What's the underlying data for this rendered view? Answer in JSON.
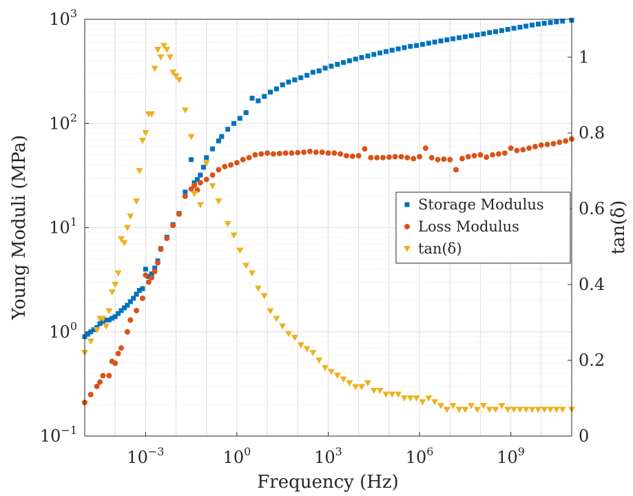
{
  "chart_data": {
    "type": "scatter",
    "title": "",
    "xlabel": "Frequency (Hz)",
    "ylabel": "Young Moduli (MPa)",
    "y2label": "tan(δ)",
    "x_scale": "log",
    "y_scale": "log",
    "xlim": [
      1e-05,
      100000000000
    ],
    "ylim": [
      0.1,
      1000
    ],
    "y2lim": [
      0,
      1.1
    ],
    "grid": true,
    "legend_position": "center-right",
    "x_ticks": [
      {
        "value": 0.001,
        "base": "10",
        "exp": "−3"
      },
      {
        "value": 1,
        "base": "10",
        "exp": "0"
      },
      {
        "value": 1000,
        "base": "10",
        "exp": "3"
      },
      {
        "value": 1000000,
        "base": "10",
        "exp": "6"
      },
      {
        "value": 1000000000,
        "base": "10",
        "exp": "9"
      }
    ],
    "y_ticks": [
      {
        "value": 0.1,
        "base": "10",
        "exp": "−1"
      },
      {
        "value": 1,
        "base": "10",
        "exp": "0"
      },
      {
        "value": 10,
        "base": "10",
        "exp": "1"
      },
      {
        "value": 100,
        "base": "10",
        "exp": "2"
      },
      {
        "value": 1000,
        "base": "10",
        "exp": "3"
      }
    ],
    "y2_ticks": [
      {
        "value": 0,
        "label": "0"
      },
      {
        "value": 0.2,
        "label": "0.2"
      },
      {
        "value": 0.4,
        "label": "0.4"
      },
      {
        "value": 0.6,
        "label": "0.6"
      },
      {
        "value": 0.8,
        "label": "0.8"
      },
      {
        "value": 1,
        "label": "1"
      }
    ],
    "series": [
      {
        "name": "Storage Modulus",
        "marker": "square",
        "color": "#0072BD",
        "axis": "left",
        "points": [
          [
            1e-05,
            0.9
          ],
          [
            1.26e-05,
            0.95
          ],
          [
            1.58e-05,
            1.0
          ],
          [
            2e-05,
            1.05
          ],
          [
            2.5e-05,
            1.1
          ],
          [
            3.16e-05,
            1.2
          ],
          [
            3.98e-05,
            1.25
          ],
          [
            5e-05,
            1.3
          ],
          [
            6.31e-05,
            1.3
          ],
          [
            7.94e-05,
            1.35
          ],
          [
            0.0001,
            1.4
          ],
          [
            0.000126,
            1.5
          ],
          [
            0.000158,
            1.6
          ],
          [
            0.0002,
            1.7
          ],
          [
            0.000251,
            1.8
          ],
          [
            0.000316,
            1.95
          ],
          [
            0.000398,
            2.1
          ],
          [
            0.0005,
            2.3
          ],
          [
            0.000631,
            2.5
          ],
          [
            0.000794,
            2.6
          ],
          [
            0.001,
            4.0
          ],
          [
            0.00126,
            3.4
          ],
          [
            0.00158,
            3.6
          ],
          [
            0.002,
            4.1
          ],
          [
            0.00251,
            4.8
          ],
          [
            0.00316,
            6.3
          ],
          [
            0.00501,
            8.1
          ],
          [
            0.00794,
            10.7
          ],
          [
            0.0126,
            13.7
          ],
          [
            0.02,
            22.0
          ],
          [
            0.0316,
            45.0
          ],
          [
            0.0398,
            27.0
          ],
          [
            0.0501,
            29.0
          ],
          [
            0.0631,
            32.0
          ],
          [
            0.0794,
            38.0
          ],
          [
            0.1,
            47.0
          ],
          [
            0.158,
            57.0
          ],
          [
            0.251,
            68.0
          ],
          [
            0.316,
            75.0
          ],
          [
            0.501,
            88.0
          ],
          [
            0.794,
            100.0
          ],
          [
            1.26,
            112.0
          ],
          [
            2.0,
            127.0
          ],
          [
            3.16,
            175.0
          ],
          [
            5.0,
            165.0
          ],
          [
            7.94,
            182.0
          ],
          [
            12.6,
            200.0
          ],
          [
            20,
            215.0
          ],
          [
            31.6,
            235.0
          ],
          [
            50,
            250.0
          ],
          [
            79.4,
            262.0
          ],
          [
            126,
            275.0
          ],
          [
            200,
            290.0
          ],
          [
            316,
            310.0
          ],
          [
            501,
            320.0
          ],
          [
            794,
            340.0
          ],
          [
            1260,
            355.0
          ],
          [
            2000,
            370.0
          ],
          [
            3160,
            385.0
          ],
          [
            5010,
            400.0
          ],
          [
            7940,
            415.0
          ],
          [
            12600,
            430.0
          ],
          [
            20000,
            445.0
          ],
          [
            31600,
            460.0
          ],
          [
            50100,
            475.0
          ],
          [
            79400,
            490.0
          ],
          [
            126000,
            505.0
          ],
          [
            200000,
            520.0
          ],
          [
            316000,
            535.0
          ],
          [
            501000,
            550.0
          ],
          [
            794000,
            560.0
          ],
          [
            1260000,
            575.0
          ],
          [
            2000000,
            590.0
          ],
          [
            3160000,
            605.0
          ],
          [
            5010000,
            620.0
          ],
          [
            7940000,
            635.0
          ],
          [
            12600000,
            650.0
          ],
          [
            20000000,
            665.0
          ],
          [
            31600000,
            680.0
          ],
          [
            50100000,
            695.0
          ],
          [
            79400000,
            710.0
          ],
          [
            126000000,
            725.0
          ],
          [
            200000000,
            745.0
          ],
          [
            316000000,
            760.0
          ],
          [
            501000000,
            780.0
          ],
          [
            794000000,
            800.0
          ],
          [
            1260000000,
            820.0
          ],
          [
            2000000000,
            840.0
          ],
          [
            3160000000,
            860.0
          ],
          [
            5010000000,
            880.0
          ],
          [
            7940000000,
            900.0
          ],
          [
            12600000000,
            915.0
          ],
          [
            20000000000,
            930.0
          ],
          [
            31600000000,
            945.0
          ],
          [
            50100000000,
            960.0
          ],
          [
            100000000000,
            980.0
          ]
        ]
      },
      {
        "name": "Loss Modulus",
        "marker": "circle",
        "color": "#D95319",
        "axis": "left",
        "points": [
          [
            1e-05,
            0.21
          ],
          [
            1.58e-05,
            0.25
          ],
          [
            2.51e-05,
            0.3
          ],
          [
            3.16e-05,
            0.33
          ],
          [
            3.98e-05,
            0.38
          ],
          [
            6.31e-05,
            0.38
          ],
          [
            7.94e-05,
            0.52
          ],
          [
            0.0001,
            0.5
          ],
          [
            0.000126,
            0.62
          ],
          [
            0.000158,
            0.7
          ],
          [
            0.000251,
            1.0
          ],
          [
            0.000316,
            1.3
          ],
          [
            0.000501,
            1.6
          ],
          [
            0.000794,
            2.1
          ],
          [
            0.001,
            3.5
          ],
          [
            0.00126,
            3.0
          ],
          [
            0.00158,
            3.3
          ],
          [
            0.002,
            3.8
          ],
          [
            0.00251,
            4.6
          ],
          [
            0.00316,
            6.2
          ],
          [
            0.00501,
            7.9
          ],
          [
            0.00794,
            10.5
          ],
          [
            0.0126,
            13.5
          ],
          [
            0.02,
            20.0
          ],
          [
            0.0316,
            23.5
          ],
          [
            0.0398,
            25.5
          ],
          [
            0.0501,
            23.0
          ],
          [
            0.0631,
            27.0
          ],
          [
            0.1,
            29.0
          ],
          [
            0.158,
            32.0
          ],
          [
            0.251,
            36.0
          ],
          [
            0.398,
            38.5
          ],
          [
            0.631,
            40.0
          ],
          [
            1.0,
            42.0
          ],
          [
            1.58,
            45.0
          ],
          [
            2.51,
            47.0
          ],
          [
            3.98,
            50.0
          ],
          [
            6.31,
            51.0
          ],
          [
            10,
            52.0
          ],
          [
            15.8,
            51.0
          ],
          [
            25.1,
            51.5
          ],
          [
            39.8,
            52.0
          ],
          [
            63.1,
            52.0
          ],
          [
            100,
            52.5
          ],
          [
            158,
            53.0
          ],
          [
            251,
            54.0
          ],
          [
            398,
            53.0
          ],
          [
            631,
            53.0
          ],
          [
            1000,
            52.0
          ],
          [
            1580,
            52.0
          ],
          [
            2510,
            51.0
          ],
          [
            3980,
            49.0
          ],
          [
            6310,
            48.5
          ],
          [
            10000,
            49.0
          ],
          [
            15800,
            57.0
          ],
          [
            25100,
            47.0
          ],
          [
            39800,
            47.0
          ],
          [
            63100,
            47.0
          ],
          [
            100000,
            47.5
          ],
          [
            158000,
            48.0
          ],
          [
            251000,
            48.0
          ],
          [
            398000,
            47.0
          ],
          [
            631000,
            46.0
          ],
          [
            1000000,
            48.0
          ],
          [
            1580000,
            58.0
          ],
          [
            2510000,
            47.0
          ],
          [
            3980000,
            45.0
          ],
          [
            6310000,
            45.5
          ],
          [
            10000000,
            45.0
          ],
          [
            15800000,
            36.0
          ],
          [
            25100000,
            46.0
          ],
          [
            39800000,
            48.0
          ],
          [
            63100000,
            49.0
          ],
          [
            100000000,
            50.0
          ],
          [
            158000000,
            47.5
          ],
          [
            251000000,
            50.0
          ],
          [
            398000000,
            51.0
          ],
          [
            631000000,
            52.0
          ],
          [
            1000000000,
            58.0
          ],
          [
            1580000000,
            55.0
          ],
          [
            2510000000,
            56.0
          ],
          [
            3980000000,
            58.0
          ],
          [
            6310000000,
            60.0
          ],
          [
            10000000000,
            62.0
          ],
          [
            15800000000,
            63.0
          ],
          [
            25100000000,
            64.0
          ],
          [
            39800000000,
            66.0
          ],
          [
            63100000000,
            68.0
          ],
          [
            100000000000,
            71.0
          ]
        ]
      },
      {
        "name": "tan(δ)",
        "marker": "triangle-down",
        "color": "#EDB120",
        "axis": "right",
        "points": [
          [
            1e-05,
            0.22
          ],
          [
            1.58e-05,
            0.25
          ],
          [
            2.51e-05,
            0.28
          ],
          [
            3.16e-05,
            0.31
          ],
          [
            3.98e-05,
            0.31
          ],
          [
            5.01e-05,
            0.29
          ],
          [
            6.31e-05,
            0.33
          ],
          [
            7.94e-05,
            0.38
          ],
          [
            0.0001,
            0.4
          ],
          [
            0.000126,
            0.43
          ],
          [
            0.000158,
            0.52
          ],
          [
            0.0002,
            0.51
          ],
          [
            0.000251,
            0.55
          ],
          [
            0.000316,
            0.58
          ],
          [
            0.000501,
            0.62
          ],
          [
            0.000631,
            0.7
          ],
          [
            0.000794,
            0.78
          ],
          [
            0.001,
            0.8
          ],
          [
            0.00126,
            0.85
          ],
          [
            0.00158,
            0.85
          ],
          [
            0.002,
            0.97
          ],
          [
            0.00251,
            1.02
          ],
          [
            0.00316,
            1.0
          ],
          [
            0.00398,
            1.03
          ],
          [
            0.00501,
            1.02
          ],
          [
            0.00631,
            1.0
          ],
          [
            0.00794,
            0.96
          ],
          [
            0.01,
            0.95
          ],
          [
            0.0126,
            0.94
          ],
          [
            0.02,
            0.86
          ],
          [
            0.0316,
            0.79
          ],
          [
            0.0398,
            0.64
          ],
          [
            0.0631,
            0.61
          ],
          [
            0.1,
            0.72
          ],
          [
            0.158,
            0.66
          ],
          [
            0.251,
            0.62
          ],
          [
            0.501,
            0.56
          ],
          [
            0.794,
            0.53
          ],
          [
            1.26,
            0.49
          ],
          [
            2.0,
            0.45
          ],
          [
            3.16,
            0.43
          ],
          [
            5.01,
            0.39
          ],
          [
            7.94,
            0.37
          ],
          [
            12.6,
            0.33
          ],
          [
            20,
            0.31
          ],
          [
            31.6,
            0.29
          ],
          [
            50.1,
            0.27
          ],
          [
            79.4,
            0.26
          ],
          [
            126,
            0.24
          ],
          [
            200,
            0.23
          ],
          [
            316,
            0.22
          ],
          [
            501,
            0.2
          ],
          [
            794,
            0.18
          ],
          [
            1260,
            0.17
          ],
          [
            2000,
            0.16
          ],
          [
            3160,
            0.15
          ],
          [
            5010,
            0.14
          ],
          [
            7940,
            0.13
          ],
          [
            12600,
            0.13
          ],
          [
            20000,
            0.14
          ],
          [
            31600,
            0.12
          ],
          [
            50100,
            0.12
          ],
          [
            79400,
            0.11
          ],
          [
            126000,
            0.11
          ],
          [
            200000,
            0.11
          ],
          [
            316000,
            0.1
          ],
          [
            501000,
            0.1
          ],
          [
            794000,
            0.1
          ],
          [
            1260000,
            0.09
          ],
          [
            2000000,
            0.1
          ],
          [
            3160000,
            0.09
          ],
          [
            5010000,
            0.08
          ],
          [
            7940000,
            0.07
          ],
          [
            12600000,
            0.08
          ],
          [
            20000000,
            0.07
          ],
          [
            31600000,
            0.07
          ],
          [
            50100000,
            0.08
          ],
          [
            79400000,
            0.07
          ],
          [
            126000000,
            0.08
          ],
          [
            200000000,
            0.07
          ],
          [
            316000000,
            0.07
          ],
          [
            501000000,
            0.08
          ],
          [
            794000000,
            0.07
          ],
          [
            1260000000,
            0.07
          ],
          [
            2000000000,
            0.07
          ],
          [
            3160000000,
            0.07
          ],
          [
            5010000000,
            0.07
          ],
          [
            7940000000,
            0.07
          ],
          [
            12600000000,
            0.07
          ],
          [
            20000000000,
            0.07
          ],
          [
            31600000000,
            0.07
          ],
          [
            50100000000,
            0.07
          ],
          [
            100000000000,
            0.07
          ]
        ]
      }
    ]
  }
}
